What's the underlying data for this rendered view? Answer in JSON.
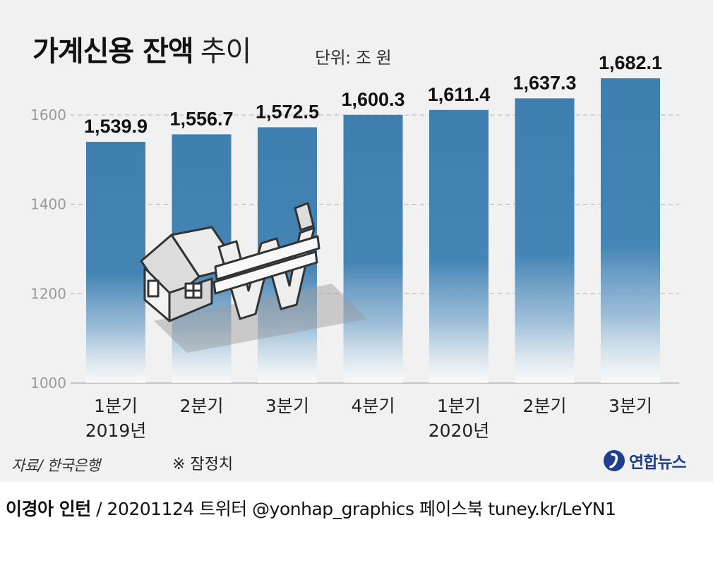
{
  "title": "가계신용 잔액",
  "title_suffix": "추이",
  "unit": "단위: 조 원",
  "source": "자료/ 한국은행",
  "note": "※ 잠정치",
  "logo_text": "연합뉴스",
  "footer": {
    "author": "이경아 인턴",
    "rest": " / 20201124     트위터 @yonhap_graphics  페이스북 tuney.kr/LeYN1"
  },
  "colors": {
    "bar": "#3f7faf",
    "panel": "#f1f1f1",
    "logo": "#1e3f8f"
  },
  "chart_data": {
    "type": "bar",
    "title": "가계신용 잔액 추이",
    "ylabel": "단위: 조 원",
    "categories": [
      "1분기",
      "2분기",
      "3분기",
      "4분기",
      "1분기",
      "2분기",
      "3분기"
    ],
    "year_labels": [
      "2019년",
      "",
      "",
      "",
      "2020년",
      "",
      ""
    ],
    "values": [
      1539.9,
      1556.7,
      1572.5,
      1600.3,
      1611.4,
      1637.3,
      1682.1
    ],
    "value_labels": [
      "1,539.9",
      "1,556.7",
      "1,572.5",
      "1,600.3",
      "1,611.4",
      "1,637.3",
      "1,682.1"
    ],
    "ylim": [
      1000,
      1700
    ],
    "yticks": [
      1000,
      1200,
      1400,
      1600
    ],
    "grid": true,
    "legend": "none"
  }
}
